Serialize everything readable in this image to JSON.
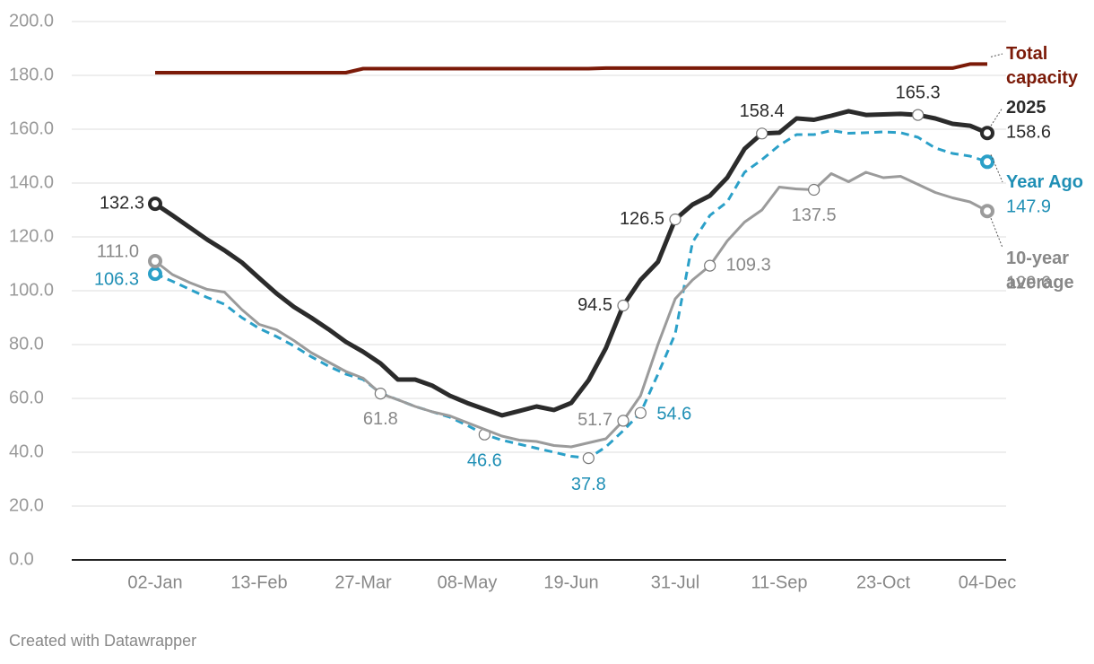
{
  "chart_data": {
    "type": "line",
    "categories": [
      "02-Jan",
      null,
      null,
      null,
      null,
      null,
      "13-Feb",
      null,
      null,
      null,
      null,
      null,
      "27-Mar",
      null,
      null,
      null,
      null,
      null,
      "08-May",
      null,
      null,
      null,
      null,
      null,
      "19-Jun",
      null,
      null,
      null,
      null,
      null,
      "31-Jul",
      null,
      null,
      null,
      null,
      null,
      "11-Sep",
      null,
      null,
      null,
      null,
      null,
      "23-Oct",
      null,
      null,
      null,
      null,
      null,
      "04-Dec"
    ],
    "ylim": [
      0,
      200
    ],
    "yticks": [
      {
        "value": 0,
        "label": "0.0"
      },
      {
        "value": 20,
        "label": "20.0"
      },
      {
        "value": 40,
        "label": "40.0"
      },
      {
        "value": 60,
        "label": "60.0"
      },
      {
        "value": 80,
        "label": "80.0"
      },
      {
        "value": 100,
        "label": "100.0"
      },
      {
        "value": 120,
        "label": "120.0"
      },
      {
        "value": 140,
        "label": "140.0"
      },
      {
        "value": 160,
        "label": "160.0"
      },
      {
        "value": 180,
        "label": "180.0"
      },
      {
        "value": {
          "value": 200,
          "label": "200.0"
        },
        "label": "200.0"
      }
    ],
    "grid": true,
    "series": [
      {
        "name": "Total capacity",
        "color": "#7b1a08",
        "dashed": false,
        "values": [
          181,
          181,
          181,
          181,
          181,
          181,
          181,
          181,
          181,
          181,
          181,
          181,
          182.5,
          182.5,
          182.5,
          182.5,
          182.5,
          182.5,
          182.5,
          182.5,
          182.5,
          182.5,
          182.5,
          182.5,
          182.5,
          182.5,
          182.7,
          182.7,
          182.7,
          182.7,
          182.7,
          182.7,
          182.7,
          182.7,
          182.7,
          182.7,
          182.7,
          182.7,
          182.7,
          182.7,
          182.7,
          182.7,
          182.7,
          182.7,
          182.7,
          182.7,
          182.7,
          184.2,
          184.2
        ]
      },
      {
        "name": "2025",
        "color": "#2b2b2b",
        "dashed": false,
        "values": [
          132.3,
          128,
          123.5,
          119,
          115,
          110.5,
          104.7,
          99,
          94,
          90,
          85.7,
          81,
          77.3,
          73,
          67,
          67,
          64.7,
          61,
          58.3,
          56,
          53.7,
          55.3,
          57,
          55.7,
          58.3,
          66.7,
          78.7,
          94.5,
          104,
          110.7,
          126.5,
          132,
          135.3,
          142,
          152.7,
          158.4,
          158.7,
          164,
          163.5,
          165,
          166.7,
          165.3,
          165.5,
          165.7,
          165.3,
          164,
          162,
          161.3,
          158.6
        ],
        "value_labels": [
          "132.3",
          null,
          null,
          null,
          null,
          null,
          null,
          null,
          null,
          null,
          null,
          null,
          null,
          null,
          null,
          null,
          null,
          null,
          null,
          null,
          null,
          null,
          null,
          null,
          null,
          null,
          null,
          "94.5",
          null,
          null,
          "126.5",
          null,
          null,
          null,
          null,
          "158.4",
          null,
          null,
          null,
          null,
          null,
          null,
          null,
          null,
          "165.3",
          null,
          null,
          null,
          "158.6"
        ]
      },
      {
        "name": "Year Ago",
        "color": "#2ba0c8",
        "dashed": true,
        "values": [
          106.3,
          103.5,
          100.5,
          97.5,
          95,
          90,
          86,
          83,
          79.5,
          75.5,
          72,
          69,
          67,
          62,
          59.5,
          57,
          55,
          53,
          50,
          46.6,
          44.5,
          43,
          41.5,
          40,
          38.5,
          37.8,
          42,
          48,
          54.6,
          69,
          84,
          118,
          128,
          133,
          144,
          148.7,
          154,
          158,
          158,
          159.5,
          158.5,
          158.7,
          159,
          158.7,
          157,
          153,
          151,
          150,
          147.9
        ],
        "value_labels": [
          "106.3",
          null,
          null,
          null,
          null,
          null,
          null,
          null,
          null,
          null,
          null,
          null,
          null,
          null,
          null,
          null,
          null,
          null,
          null,
          "46.6",
          null,
          null,
          null,
          null,
          null,
          "37.8",
          null,
          null,
          "54.6",
          null,
          null,
          null,
          null,
          null,
          null,
          null,
          null,
          null,
          null,
          null,
          null,
          null,
          null,
          null,
          null,
          null,
          null,
          null,
          "147.9"
        ]
      },
      {
        "name": "10-year average",
        "color": "#9b9b9b",
        "dashed": false,
        "values": [
          111,
          106,
          103,
          100.5,
          99.5,
          93,
          87.5,
          85.5,
          81.5,
          77,
          73.5,
          70,
          67.5,
          61.8,
          59.5,
          57,
          55,
          53.5,
          51,
          48.5,
          46,
          44.5,
          44,
          42.5,
          42,
          43.5,
          45,
          51.7,
          61,
          80,
          97,
          104,
          109.3,
          118.5,
          125.5,
          130,
          138.5,
          137.8,
          137.5,
          143.5,
          140.5,
          144,
          142,
          142.5,
          139.5,
          136.5,
          134.5,
          133,
          129.6
        ],
        "value_labels": [
          "111.0",
          null,
          null,
          null,
          null,
          null,
          null,
          null,
          null,
          null,
          null,
          null,
          null,
          "61.8",
          null,
          null,
          null,
          null,
          null,
          null,
          null,
          null,
          null,
          null,
          null,
          null,
          null,
          "51.7",
          null,
          null,
          null,
          null,
          "109.3",
          null,
          null,
          null,
          null,
          null,
          "137.5",
          null,
          null,
          null,
          null,
          null,
          null,
          null,
          null,
          null,
          "129.6"
        ]
      }
    ],
    "credit": "Created with Datawrapper"
  }
}
